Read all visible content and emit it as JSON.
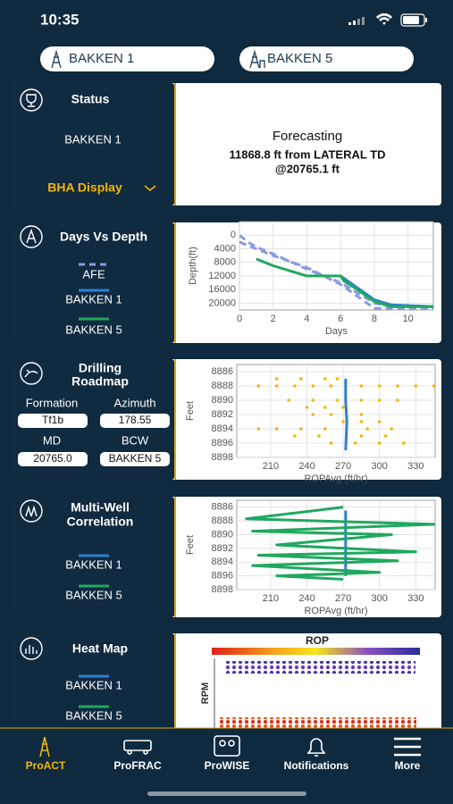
{
  "status_bar": {
    "time": "10:35"
  },
  "wells": [
    "BAKKEN 1",
    "BAKKEN 5"
  ],
  "status_card": {
    "title": "Status",
    "well": "BAKKEN 1",
    "link": "BHA Display",
    "heading": "Forecasting",
    "line1": "11868.8 ft from LATERAL TD",
    "line2": "@20765.1 ft"
  },
  "days_vs_depth": {
    "title": "Days Vs Depth",
    "chart": {
      "type": "line",
      "xlabel": "Days",
      "ylabel": "Depth(ft)",
      "xlim": [
        0,
        11.5
      ],
      "ylim": [
        -4000,
        22000
      ],
      "y_inverted": true,
      "xticks": [
        0,
        2,
        4,
        6,
        8,
        10
      ],
      "yticks": [
        0,
        4000,
        8000,
        12000,
        16000,
        20000
      ],
      "grid": true,
      "series": [
        {
          "name": "AFE",
          "color": "#8c9be0",
          "dashed": true,
          "x": [
            0,
            0.5,
            1,
            2,
            4,
            6,
            7,
            8,
            9,
            11.5,
            null,
            0,
            2,
            4,
            6,
            7,
            8,
            11.5
          ],
          "values": [
            0,
            2000,
            3500,
            5500,
            10000,
            14000,
            17000,
            20000,
            21000,
            21000,
            null,
            2000,
            6000,
            9500,
            14500,
            18000,
            21500,
            21500
          ]
        },
        {
          "name": "BAKKEN 1",
          "color": "#2f7fcf",
          "x": [
            6,
            7,
            8,
            9,
            11.5
          ],
          "values": [
            12000,
            15500,
            19000,
            20500,
            21000
          ]
        },
        {
          "name": "BAKKEN 5",
          "color": "#20a860",
          "x": [
            1,
            2,
            3,
            4,
            5,
            6,
            6.2,
            7,
            8,
            9,
            10,
            11.5
          ],
          "values": [
            7000,
            9000,
            10500,
            12000,
            12000,
            12000,
            13500,
            16000,
            19500,
            21000,
            21000,
            21000
          ]
        }
      ]
    }
  },
  "drilling_roadmap": {
    "title_lines": [
      "Drilling",
      "Roadmap"
    ],
    "fields": [
      {
        "label": "Formation",
        "value": "Tf1b"
      },
      {
        "label": "Azimuth",
        "value": "178.55"
      },
      {
        "label": "MD",
        "value": "20765.0"
      },
      {
        "label": "BCW",
        "value": "BAKKEN 5"
      }
    ],
    "chart": {
      "type": "scatter",
      "xlabel": "ROPAvg (ft/hr)",
      "ylabel": "Feet",
      "xlim": [
        182,
        346
      ],
      "ylim": [
        8885,
        8898
      ],
      "y_inverted": true,
      "xticks": [
        210,
        240,
        270,
        300,
        330
      ],
      "yticks": [
        8886,
        8888,
        8890,
        8892,
        8894,
        8896,
        8898
      ],
      "grid": true,
      "series": [
        {
          "color": "#f2b705",
          "mode": "markers",
          "x": [
            200,
            215,
            230,
            245,
            260,
            285,
            300,
            315,
            330,
            345,
            215,
            235,
            255,
            265,
            225,
            245,
            265,
            285,
            300,
            315,
            240,
            255,
            270,
            245,
            260,
            285,
            270,
            285,
            300,
            200,
            215,
            235,
            255,
            290,
            310,
            230,
            250,
            285,
            305,
            260,
            280,
            300,
            320
          ],
          "values": [
            8888,
            8888,
            8888,
            8888,
            8888,
            8888,
            8888,
            8888,
            8888,
            8888,
            8887,
            8887,
            8887,
            8887,
            8890,
            8890,
            8890,
            8890,
            8890,
            8890,
            8891,
            8891,
            8891,
            8892,
            8892,
            8892,
            8893,
            8893,
            8893,
            8894,
            8894,
            8894,
            8894,
            8894,
            8894,
            8895,
            8895,
            8895,
            8895,
            8896,
            8896,
            8896,
            8896
          ]
        },
        {
          "color": "#2f7fcf",
          "mode": "lines",
          "x": [
            272,
            272,
            273,
            272
          ],
          "values": [
            8887,
            8890,
            8893,
            8897
          ]
        }
      ]
    }
  },
  "multi_well": {
    "title_lines": [
      "Multi-Well",
      "Correlation"
    ],
    "chart": {
      "type": "line",
      "xlabel": "ROPAvg (ft/hr)",
      "ylabel": "Feet",
      "xlim": [
        182,
        346
      ],
      "ylim": [
        8885,
        8898
      ],
      "y_inverted": true,
      "xticks": [
        210,
        240,
        270,
        300,
        330
      ],
      "yticks": [
        8886,
        8888,
        8890,
        8892,
        8894,
        8896,
        8898
      ],
      "grid": true,
      "series": [
        {
          "name": "BAKKEN 1",
          "color": "#2f7fcf",
          "x": [
            272,
            272
          ],
          "values": [
            8886.5,
            8896
          ]
        },
        {
          "name": "BAKKEN 5",
          "color": "#20a860",
          "x": [
            270,
            190,
            346,
            195,
            310,
            215,
            330,
            200,
            315,
            195,
            300,
            215,
            270
          ],
          "values": [
            8886,
            8887.7,
            8888.5,
            8889.5,
            8890,
            8891.5,
            8892.5,
            8893,
            8893.8,
            8894.5,
            8895.5,
            8896,
            8896.5
          ]
        }
      ]
    }
  },
  "heat_map": {
    "title": "Heat Map",
    "colorbar_title": "ROP",
    "ylabel": "RPM",
    "series": [
      {
        "name": "BAKKEN 1",
        "color": "#2f7fcf"
      },
      {
        "name": "BAKKEN 5",
        "color": "#20a860"
      }
    ]
  },
  "tabs": [
    "ProACT",
    "ProFRAC",
    "ProWISE",
    "Notifications",
    "More"
  ]
}
